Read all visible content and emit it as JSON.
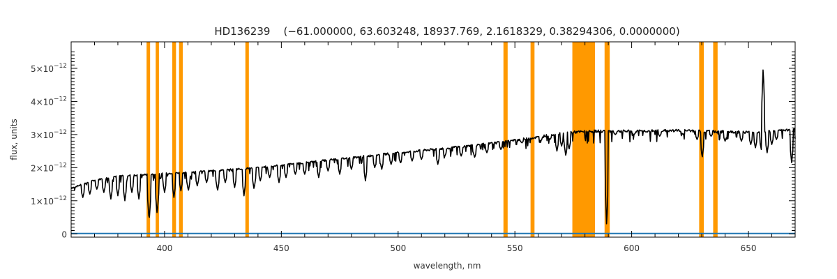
{
  "chart_data": {
    "type": "line",
    "title": "HD136239    (−61.000000, 63.603248, 18937.769, 2.1618329, 0.38294306, 0.0000000)",
    "xlabel": "wavelength, nm",
    "ylabel": "flux, units",
    "xlim": [
      360,
      670
    ],
    "ylim": [
      -1e-13,
      5.8e-12
    ],
    "x_ticks": [
      400,
      450,
      500,
      550,
      600,
      650
    ],
    "x_tick_labels": [
      "400",
      "450",
      "500",
      "550",
      "600",
      "650"
    ],
    "y_ticks": [
      0,
      1e-12,
      2e-12,
      3e-12,
      4e-12,
      5e-12
    ],
    "y_tick_labels": [
      {
        "mant": "0",
        "exp": ""
      },
      {
        "mant": "1×10",
        "exp": "−12"
      },
      {
        "mant": "2×10",
        "exp": "−12"
      },
      {
        "mant": "3×10",
        "exp": "−12"
      },
      {
        "mant": "4×10",
        "exp": "−12"
      },
      {
        "mant": "5×10",
        "exp": "−12"
      }
    ],
    "grid": false,
    "colors": {
      "spectrum": "#000000",
      "error": "#1f77b4",
      "masked": "#ff9900"
    },
    "masked_ranges": [
      [
        392.3,
        393.8
      ],
      [
        396.2,
        397.6
      ],
      [
        403.3,
        404.9
      ],
      [
        406.2,
        407.8
      ],
      [
        434.6,
        436.1
      ],
      [
        545.1,
        546.9
      ],
      [
        556.7,
        558.4
      ],
      [
        574.6,
        584.3
      ],
      [
        588.4,
        590.6
      ],
      [
        628.9,
        630.9
      ],
      [
        634.9,
        636.8
      ]
    ],
    "series": [
      {
        "role": "spectrum",
        "continuum": [
          [
            360,
            1.38e-12
          ],
          [
            370,
            1.62e-12
          ],
          [
            380,
            1.75e-12
          ],
          [
            390,
            1.78e-12
          ],
          [
            400,
            1.82e-12
          ],
          [
            420,
            1.9e-12
          ],
          [
            440,
            2e-12
          ],
          [
            460,
            2.15e-12
          ],
          [
            480,
            2.3e-12
          ],
          [
            500,
            2.45e-12
          ],
          [
            520,
            2.58e-12
          ],
          [
            540,
            2.73e-12
          ],
          [
            560,
            2.92e-12
          ],
          [
            570,
            3.05e-12
          ],
          [
            575,
            3.07e-12
          ],
          [
            585,
            3.1e-12
          ],
          [
            600,
            3.1e-12
          ],
          [
            620,
            3.12e-12
          ],
          [
            640,
            3.08e-12
          ],
          [
            650,
            3.07e-12
          ],
          [
            660,
            3.1e-12
          ],
          [
            670,
            3.15e-12
          ]
        ],
        "lines": [
          [
            365,
            1.1e-12
          ],
          [
            368,
            1.2e-12
          ],
          [
            371,
            1.35e-12
          ],
          [
            374,
            1.25e-12
          ],
          [
            377,
            1.05e-12
          ],
          [
            380,
            1.15e-12
          ],
          [
            383,
            1e-12
          ],
          [
            386,
            1.25e-12
          ],
          [
            389,
            1.05e-12
          ],
          [
            393.4,
            4e-13
          ],
          [
            396.8,
            6e-13
          ],
          [
            400,
            1.25e-12
          ],
          [
            404,
            1.1e-12
          ],
          [
            407,
            1.3e-12
          ],
          [
            410.2,
            1.3e-12
          ],
          [
            414,
            1.45e-12
          ],
          [
            418,
            1.55e-12
          ],
          [
            422.7,
            1.3e-12
          ],
          [
            426,
            1.55e-12
          ],
          [
            430,
            1.4e-12
          ],
          [
            434.0,
            1.15e-12
          ],
          [
            438.3,
            1.35e-12
          ],
          [
            441,
            1.6e-12
          ],
          [
            445,
            1.7e-12
          ],
          [
            449,
            1.55e-12
          ],
          [
            452,
            1.7e-12
          ],
          [
            456,
            1.8e-12
          ],
          [
            460,
            1.8e-12
          ],
          [
            466,
            1.7e-12
          ],
          [
            470,
            1.9e-12
          ],
          [
            475,
            1.8e-12
          ],
          [
            480,
            1.95e-12
          ],
          [
            486,
            1.6e-12
          ],
          [
            490,
            2e-12
          ],
          [
            493,
            1.95e-12
          ],
          [
            497,
            2.1e-12
          ],
          [
            501,
            2.15e-12
          ],
          [
            506,
            2.2e-12
          ],
          [
            510,
            2.25e-12
          ],
          [
            517,
            2.1e-12
          ],
          [
            520,
            2.35e-12
          ],
          [
            527,
            2.35e-12
          ],
          [
            532.8,
            2.3e-12
          ],
          [
            538,
            2.45e-12
          ],
          [
            544,
            2.55e-12
          ],
          [
            553,
            2.75e-12
          ],
          [
            561,
            2.8e-12
          ],
          [
            565,
            2.85e-12
          ],
          [
            568,
            2.5e-12
          ],
          [
            570,
            2.65e-12
          ],
          [
            571.8,
            2.35e-12
          ],
          [
            573.2,
            2.55e-12
          ],
          [
            589.3,
            2e-13
          ],
          [
            593,
            3e-12
          ],
          [
            601,
            3e-12
          ],
          [
            612,
            2.95e-12
          ],
          [
            622,
            3e-12
          ],
          [
            628.0,
            2.85e-12
          ],
          [
            630.2,
            2.3e-12
          ],
          [
            634,
            2.95e-12
          ],
          [
            640,
            2.8e-12
          ],
          [
            647,
            2.8e-12
          ],
          [
            651,
            2.7e-12
          ],
          [
            653,
            2.6e-12
          ],
          [
            655.5,
            2.55e-12
          ],
          [
            658,
            2.45e-12
          ],
          [
            660,
            2.7e-12
          ],
          [
            662,
            2.85e-12
          ],
          [
            668.5,
            2.15e-12
          ]
        ],
        "emission": [
          [
            656.3,
            5.05e-12
          ]
        ]
      },
      {
        "role": "error",
        "points": [
          [
            360,
            1e-14
          ],
          [
            670,
            1e-14
          ]
        ]
      }
    ]
  }
}
